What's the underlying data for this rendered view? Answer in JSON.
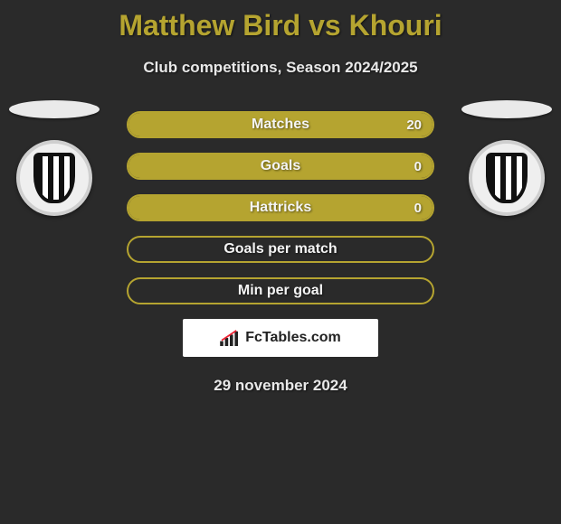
{
  "title": "Matthew Bird vs Khouri",
  "subtitle": "Club competitions, Season 2024/2025",
  "date": "29 november 2024",
  "brand": "FcTables.com",
  "colors": {
    "accent": "#b5a430",
    "bg": "#2a2a2a",
    "text": "#e8e8e8"
  },
  "stats": [
    {
      "label": "Matches",
      "value": "20",
      "show_value": true,
      "fill_pct": 100
    },
    {
      "label": "Goals",
      "value": "0",
      "show_value": true,
      "fill_pct": 100
    },
    {
      "label": "Hattricks",
      "value": "0",
      "show_value": true,
      "fill_pct": 100
    },
    {
      "label": "Goals per match",
      "value": "",
      "show_value": false,
      "fill_pct": 0
    },
    {
      "label": "Min per goal",
      "value": "",
      "show_value": false,
      "fill_pct": 0
    }
  ],
  "clubs": {
    "left": {
      "name": "Grimsby Town FC"
    },
    "right": {
      "name": "Grimsby Town FC"
    }
  }
}
